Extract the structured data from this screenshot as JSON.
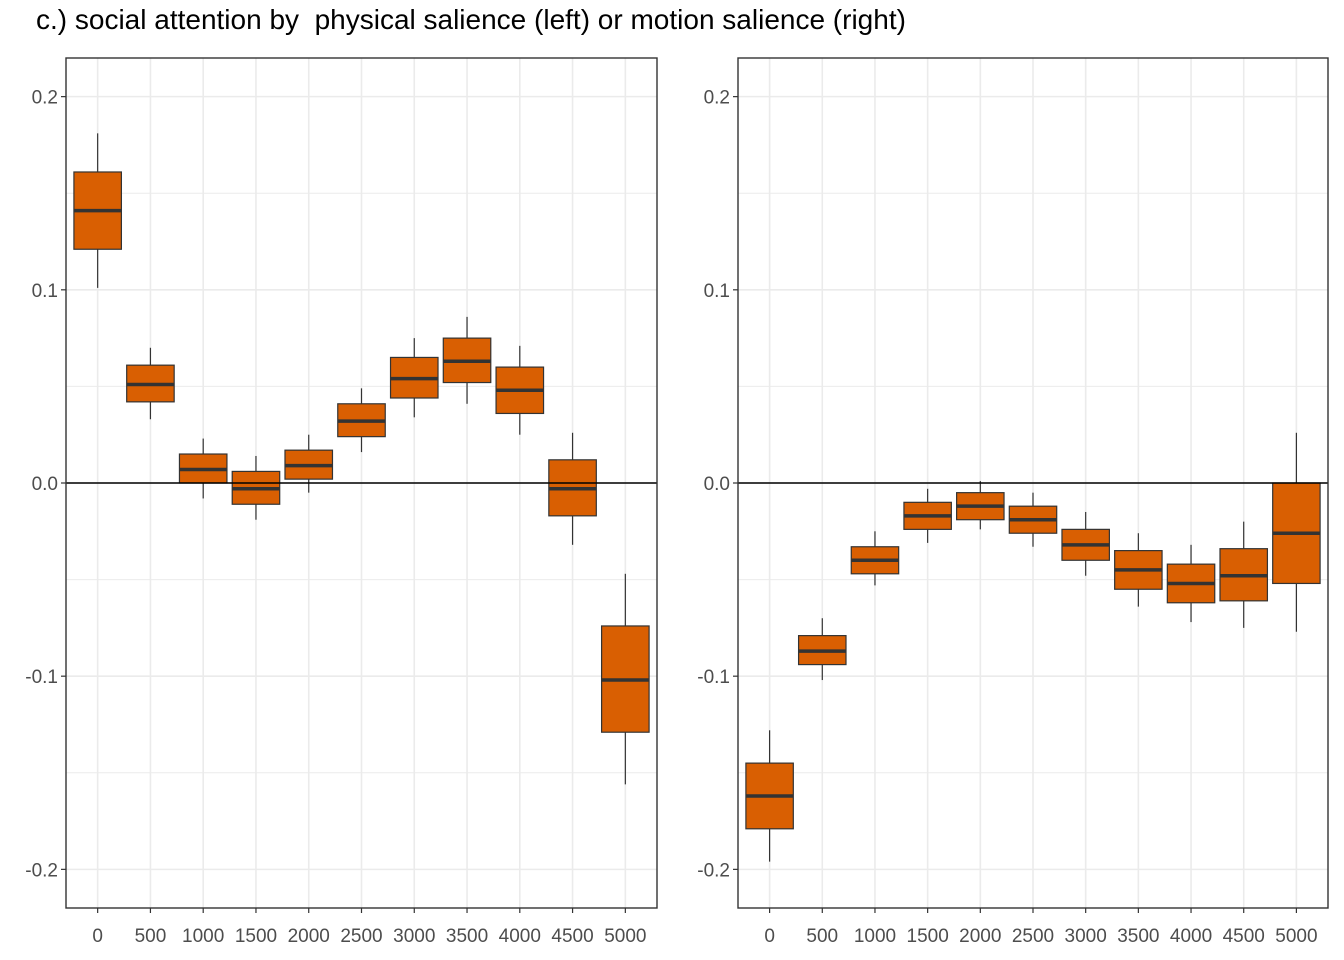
{
  "title": "c.) social attention by  physical salience (left) or motion salience (right)",
  "colors": {
    "box_fill": "#D95F02",
    "box_stroke": "#333333",
    "grid": "#EBEBEB",
    "axis": "#333333"
  },
  "chart_data": [
    {
      "type": "box",
      "panel": "left",
      "title": "",
      "xlabel": "",
      "ylabel": "",
      "categories": [
        "0",
        "500",
        "1000",
        "1500",
        "2000",
        "2500",
        "3000",
        "3500",
        "4000",
        "4500",
        "5000"
      ],
      "ylim": [
        -0.22,
        0.22
      ],
      "yticks": [
        -0.2,
        -0.1,
        0.0,
        0.1,
        0.2
      ],
      "ytick_labels": [
        "-0.2",
        "-0.1",
        "0.0",
        "0.1",
        "0.2"
      ],
      "hline": 0,
      "grid": true,
      "boxes": [
        {
          "whisker_low": 0.101,
          "q1": 0.121,
          "median": 0.141,
          "q3": 0.161,
          "whisker_high": 0.181
        },
        {
          "whisker_low": 0.033,
          "q1": 0.042,
          "median": 0.051,
          "q3": 0.061,
          "whisker_high": 0.07
        },
        {
          "whisker_low": -0.008,
          "q1": 0.0,
          "median": 0.007,
          "q3": 0.015,
          "whisker_high": 0.023
        },
        {
          "whisker_low": -0.019,
          "q1": -0.011,
          "median": -0.003,
          "q3": 0.006,
          "whisker_high": 0.014
        },
        {
          "whisker_low": -0.005,
          "q1": 0.002,
          "median": 0.009,
          "q3": 0.017,
          "whisker_high": 0.025
        },
        {
          "whisker_low": 0.016,
          "q1": 0.024,
          "median": 0.032,
          "q3": 0.041,
          "whisker_high": 0.049
        },
        {
          "whisker_low": 0.034,
          "q1": 0.044,
          "median": 0.054,
          "q3": 0.065,
          "whisker_high": 0.075
        },
        {
          "whisker_low": 0.041,
          "q1": 0.052,
          "median": 0.063,
          "q3": 0.075,
          "whisker_high": 0.086
        },
        {
          "whisker_low": 0.025,
          "q1": 0.036,
          "median": 0.048,
          "q3": 0.06,
          "whisker_high": 0.071
        },
        {
          "whisker_low": -0.032,
          "q1": -0.017,
          "median": -0.003,
          "q3": 0.012,
          "whisker_high": 0.026
        },
        {
          "whisker_low": -0.156,
          "q1": -0.129,
          "median": -0.102,
          "q3": -0.074,
          "whisker_high": -0.047
        }
      ]
    },
    {
      "type": "box",
      "panel": "right",
      "title": "",
      "xlabel": "",
      "ylabel": "",
      "categories": [
        "0",
        "500",
        "1000",
        "1500",
        "2000",
        "2500",
        "3000",
        "3500",
        "4000",
        "4500",
        "5000"
      ],
      "ylim": [
        -0.22,
        0.22
      ],
      "yticks": [
        -0.2,
        -0.1,
        0.0,
        0.1,
        0.2
      ],
      "ytick_labels": [
        "-0.2",
        "-0.1",
        "0.0",
        "0.1",
        "0.2"
      ],
      "hline": 0,
      "grid": true,
      "boxes": [
        {
          "whisker_low": -0.196,
          "q1": -0.179,
          "median": -0.162,
          "q3": -0.145,
          "whisker_high": -0.128
        },
        {
          "whisker_low": -0.102,
          "q1": -0.094,
          "median": -0.087,
          "q3": -0.079,
          "whisker_high": -0.07
        },
        {
          "whisker_low": -0.053,
          "q1": -0.047,
          "median": -0.04,
          "q3": -0.033,
          "whisker_high": -0.025
        },
        {
          "whisker_low": -0.031,
          "q1": -0.024,
          "median": -0.017,
          "q3": -0.01,
          "whisker_high": -0.003
        },
        {
          "whisker_low": -0.024,
          "q1": -0.019,
          "median": -0.012,
          "q3": -0.005,
          "whisker_high": 0.001
        },
        {
          "whisker_low": -0.033,
          "q1": -0.026,
          "median": -0.019,
          "q3": -0.012,
          "whisker_high": -0.005
        },
        {
          "whisker_low": -0.048,
          "q1": -0.04,
          "median": -0.032,
          "q3": -0.024,
          "whisker_high": -0.015
        },
        {
          "whisker_low": -0.064,
          "q1": -0.055,
          "median": -0.045,
          "q3": -0.035,
          "whisker_high": -0.026
        },
        {
          "whisker_low": -0.072,
          "q1": -0.062,
          "median": -0.052,
          "q3": -0.042,
          "whisker_high": -0.032
        },
        {
          "whisker_low": -0.075,
          "q1": -0.061,
          "median": -0.048,
          "q3": -0.034,
          "whisker_high": -0.02
        },
        {
          "whisker_low": -0.077,
          "q1": -0.052,
          "median": -0.026,
          "q3": 0.0,
          "whisker_high": 0.026
        }
      ]
    }
  ]
}
